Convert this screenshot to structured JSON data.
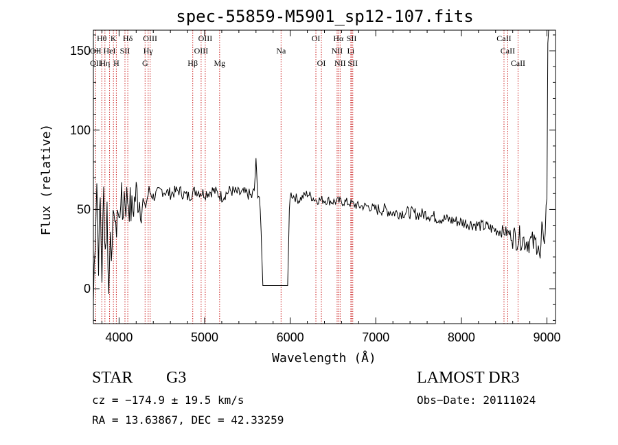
{
  "chart_data": {
    "type": "line",
    "title": "spec-55859-M5901_sp12-107.fits",
    "xlabel": "Wavelength (Å)",
    "ylabel": "Flux (relative)",
    "xlim": [
      3700,
      9100
    ],
    "ylim": [
      -22,
      163
    ],
    "x_ticks": [
      4000,
      5000,
      6000,
      7000,
      8000,
      9000
    ],
    "y_ticks": [
      0,
      50,
      100,
      150
    ],
    "x_tick_labels": [
      "4000",
      "5000",
      "6000",
      "7000",
      "8000",
      "9000"
    ],
    "y_tick_labels": [
      "0",
      "50",
      "100",
      "150"
    ],
    "series": [
      {
        "name": "spectrum",
        "x": [
          3700,
          3720,
          3740,
          3760,
          3780,
          3800,
          3820,
          3840,
          3860,
          3880,
          3900,
          3920,
          3940,
          3960,
          3980,
          4000,
          4020,
          4040,
          4060,
          4080,
          4100,
          4150,
          4200,
          4250,
          4300,
          4350,
          4400,
          4500,
          4600,
          4700,
          4800,
          4900,
          5000,
          5100,
          5200,
          5300,
          5400,
          5500,
          5550,
          5580,
          5600,
          5620,
          5640,
          5660,
          5680,
          5700,
          5800,
          5900,
          5950,
          5970,
          5990,
          6000,
          6050,
          6100,
          6200,
          6300,
          6400,
          6500,
          6600,
          6700,
          6800,
          6900,
          7000,
          7100,
          7200,
          7300,
          7400,
          7500,
          7600,
          7700,
          7800,
          7900,
          8000,
          8100,
          8200,
          8300,
          8400,
          8500,
          8550,
          8600,
          8650,
          8700,
          8750,
          8800,
          8850,
          8900,
          8920,
          8940,
          8960,
          8980,
          9000,
          9010,
          9020
        ],
        "y": [
          -8,
          35,
          68,
          20,
          55,
          10,
          60,
          25,
          50,
          -5,
          45,
          15,
          58,
          30,
          52,
          40,
          62,
          45,
          60,
          55,
          58,
          48,
          60,
          55,
          50,
          62,
          58,
          62,
          60,
          62,
          58,
          62,
          60,
          62,
          58,
          62,
          60,
          60,
          58,
          62,
          80,
          60,
          58,
          35,
          2,
          2,
          2,
          2,
          2,
          2,
          50,
          60,
          58,
          56,
          60,
          56,
          56,
          55,
          55,
          54,
          52,
          52,
          50,
          50,
          48,
          48,
          48,
          47,
          47,
          45,
          44,
          43,
          42,
          41,
          40,
          39,
          37,
          36,
          35,
          33,
          32,
          32,
          30,
          30,
          28,
          30,
          15,
          38,
          25,
          40,
          60,
          150,
          165
        ]
      }
    ],
    "line_labels": [
      {
        "text": "Hθ",
        "x": 3798,
        "row": 1
      },
      {
        "text": "K",
        "x": 3934,
        "row": 1
      },
      {
        "text": "Hδ",
        "x": 4102,
        "row": 1
      },
      {
        "text": "OIII",
        "x": 4363,
        "row": 1
      },
      {
        "text": "OIII",
        "x": 5007,
        "row": 1
      },
      {
        "text": "OI",
        "x": 6300,
        "row": 1
      },
      {
        "text": "Hα",
        "x": 6563,
        "row": 1
      },
      {
        "text": "SII",
        "x": 6717,
        "row": 1
      },
      {
        "text": "CaII",
        "x": 8498,
        "row": 1
      },
      {
        "text": "OII",
        "x": 3727,
        "row": 2
      },
      {
        "text": "HeI",
        "x": 3889,
        "row": 2
      },
      {
        "text": "SII",
        "x": 4069,
        "row": 2
      },
      {
        "text": "Hγ",
        "x": 4340,
        "row": 2
      },
      {
        "text": "OIII",
        "x": 4959,
        "row": 2
      },
      {
        "text": "Na",
        "x": 5893,
        "row": 2
      },
      {
        "text": "NII",
        "x": 6548,
        "row": 2
      },
      {
        "text": "Li",
        "x": 6708,
        "row": 2
      },
      {
        "text": "CaII",
        "x": 8542,
        "row": 2
      },
      {
        "text": "OII",
        "x": 3727,
        "row": 3
      },
      {
        "text": "Hη",
        "x": 3835,
        "row": 3
      },
      {
        "text": "H",
        "x": 3968,
        "row": 3
      },
      {
        "text": "G",
        "x": 4304,
        "row": 3
      },
      {
        "text": "Hβ",
        "x": 4861,
        "row": 3
      },
      {
        "text": "Mg",
        "x": 5175,
        "row": 3
      },
      {
        "text": "OI",
        "x": 6364,
        "row": 3
      },
      {
        "text": "NII",
        "x": 6583,
        "row": 3
      },
      {
        "text": "SII",
        "x": 6731,
        "row": 3
      },
      {
        "text": "CaII",
        "x": 8662,
        "row": 3
      }
    ],
    "line_positions": [
      3727,
      3798,
      3835,
      3889,
      3934,
      3968,
      4069,
      4102,
      4304,
      4340,
      4363,
      4861,
      4959,
      5007,
      5175,
      5893,
      6300,
      6364,
      6548,
      6563,
      6583,
      6708,
      6717,
      6731,
      8498,
      8542,
      8662
    ]
  },
  "info": {
    "object_class": "STAR",
    "subclass": "G3",
    "survey": "LAMOST DR3",
    "cz": "cz = −174.9 ± 19.5 km/s",
    "obs_date": "Obs−Date: 20111024",
    "coords": "RA =  13.63867, DEC =  42.33259"
  },
  "colors": {
    "line_marker": "#cc2222",
    "spectrum": "#000000"
  }
}
